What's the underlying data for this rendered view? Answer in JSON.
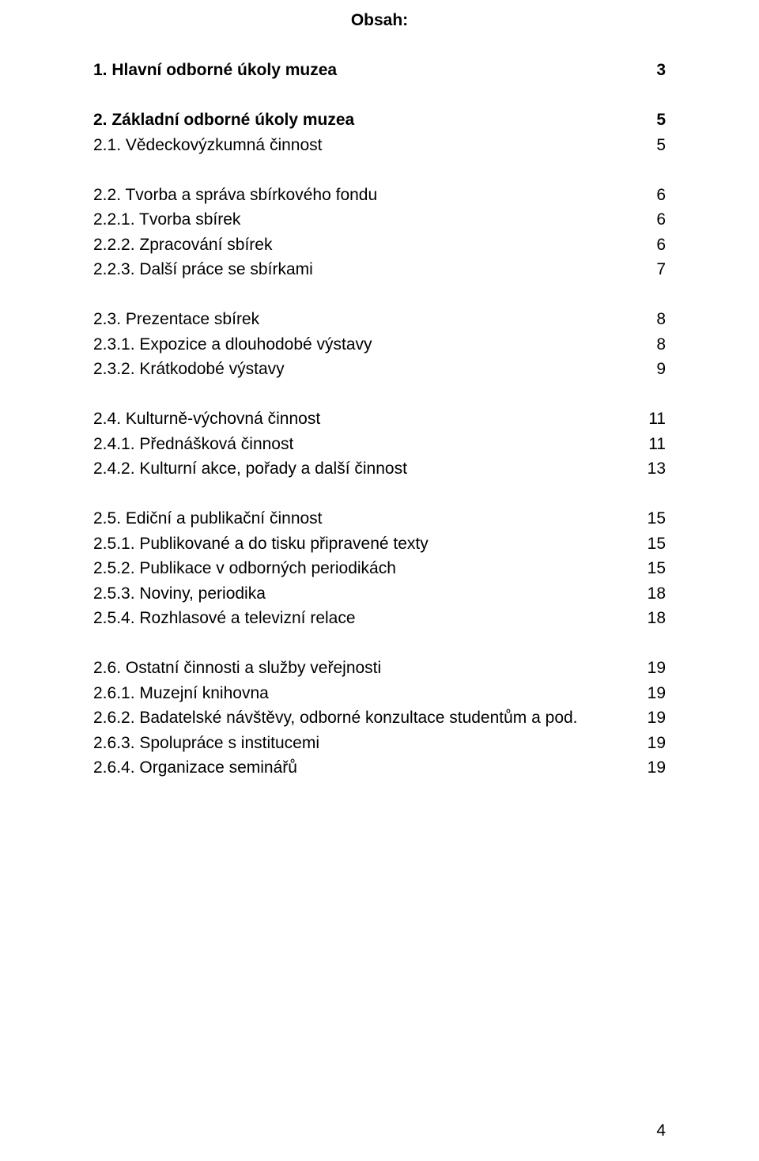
{
  "title": "Obsah:",
  "page_number": "4",
  "typography": {
    "font_family": "Arial",
    "base_font_size_pt": 16,
    "bold_weight": 700,
    "text_color": "#000000",
    "background_color": "#ffffff"
  },
  "groups": [
    {
      "rows": [
        {
          "label": "1. Hlavní odborné úkoly muzea",
          "page": "3",
          "bold": true
        }
      ]
    },
    {
      "rows": [
        {
          "label": "2. Základní odborné úkoly muzea",
          "page": "5",
          "bold": true
        },
        {
          "label": "2.1. Vědeckovýzkumná činnost",
          "page": "5",
          "bold": false
        }
      ]
    },
    {
      "rows": [
        {
          "label": "2.2. Tvorba a správa sbírkového fondu",
          "page": "6",
          "bold": false
        },
        {
          "label": "2.2.1. Tvorba sbírek",
          "page": "6",
          "bold": false
        },
        {
          "label": "2.2.2. Zpracování sbírek",
          "page": "6",
          "bold": false
        },
        {
          "label": "2.2.3. Další práce se sbírkami",
          "page": "7",
          "bold": false
        }
      ]
    },
    {
      "rows": [
        {
          "label": "2.3. Prezentace sbírek",
          "page": "8",
          "bold": false
        },
        {
          "label": "2.3.1. Expozice a dlouhodobé výstavy",
          "page": "8",
          "bold": false
        },
        {
          "label": "2.3.2. Krátkodobé výstavy",
          "page": "9",
          "bold": false
        }
      ]
    },
    {
      "rows": [
        {
          "label": "2.4. Kulturně-výchovná činnost",
          "page": "11",
          "bold": false
        },
        {
          "label": "2.4.1. Přednášková činnost",
          "page": "11",
          "bold": false
        },
        {
          "label": "2.4.2. Kulturní akce, pořady a další činnost",
          "page": "13",
          "bold": false
        }
      ]
    },
    {
      "rows": [
        {
          "label": "2.5. Ediční a publikační činnost",
          "page": "15",
          "bold": false
        },
        {
          "label": "2.5.1. Publikované a do tisku připravené texty",
          "page": "15",
          "bold": false
        },
        {
          "label": "2.5.2. Publikace v odborných periodikách",
          "page": "15",
          "bold": false
        },
        {
          "label": "2.5.3. Noviny, periodika",
          "page": "18",
          "bold": false
        },
        {
          "label": "2.5.4. Rozhlasové a televizní relace",
          "page": "18",
          "bold": false
        }
      ]
    },
    {
      "rows": [
        {
          "label": "2.6. Ostatní činnosti a služby veřejnosti",
          "page": "19",
          "bold": false
        },
        {
          "label": "2.6.1. Muzejní knihovna",
          "page": "19",
          "bold": false
        },
        {
          "label": "2.6.2. Badatelské návštěvy, odborné konzultace studentům a pod.",
          "page": "19",
          "bold": false
        },
        {
          "label": "2.6.3. Spolupráce s institucemi",
          "page": "19",
          "bold": false
        },
        {
          "label": "2.6.4. Organizace seminářů",
          "page": "19",
          "bold": false
        }
      ]
    }
  ]
}
